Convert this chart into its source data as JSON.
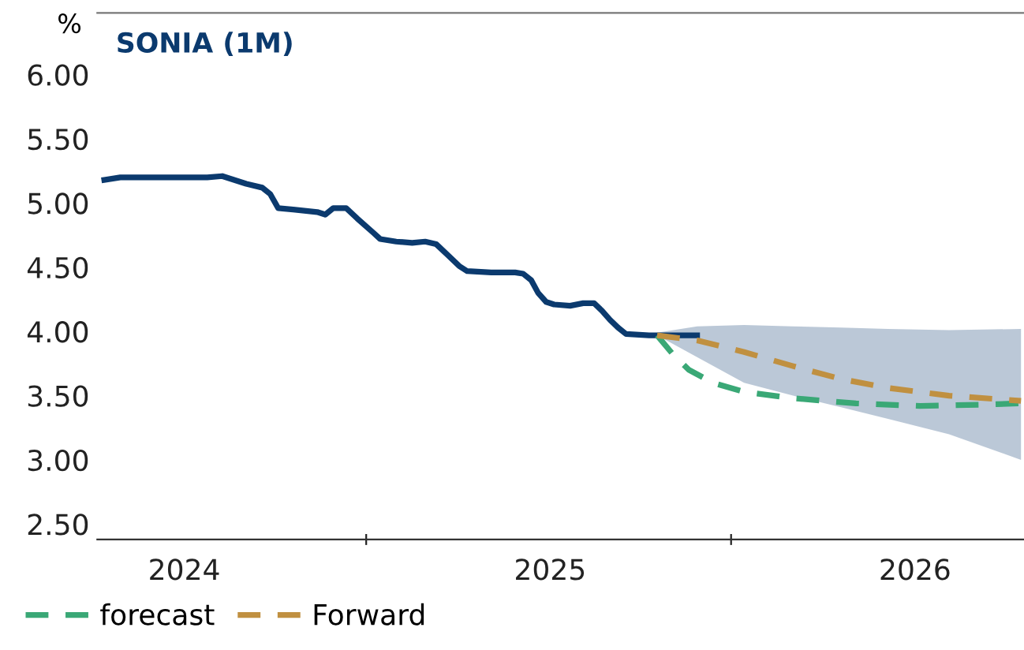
{
  "chart_data": {
    "type": "line",
    "title": "SONIA (1M)",
    "ylabel": "%",
    "xlim": [
      "2023-10-06",
      "2026-04-20"
    ],
    "ylim": [
      2.38,
      6.48
    ],
    "xticks": [
      {
        "value": "2024-01-01",
        "label": "2024"
      },
      {
        "value": "2024-07-01",
        "label": null
      },
      {
        "value": "2025-01-01",
        "label": "2025"
      },
      {
        "value": "2025-07-01",
        "label": null
      },
      {
        "value": "2026-01-01",
        "label": "2026"
      }
    ],
    "yticks": [
      {
        "value": 2.5,
        "label": "2.50"
      },
      {
        "value": 3.0,
        "label": "3.00"
      },
      {
        "value": 3.5,
        "label": "3.50"
      },
      {
        "value": 4.0,
        "label": "4.00"
      },
      {
        "value": 4.5,
        "label": "4.50"
      },
      {
        "value": 5.0,
        "label": "5.00"
      },
      {
        "value": 5.5,
        "label": "5.50"
      },
      {
        "value": 6.0,
        "label": "6.00"
      }
    ],
    "grid": false,
    "legend": "bottom left",
    "marker": "none",
    "series": [
      {
        "color": "#0b3a6e",
        "line_style": "solid",
        "x": [
          "2023-10-13",
          "2023-10-29",
          "2023-12-23",
          "2024-01-24",
          "2024-02-08",
          "2024-02-16",
          "2024-03-03",
          "2024-03-19",
          "2024-03-27",
          "2024-04-04",
          "2024-04-19",
          "2024-05-13",
          "2024-05-21",
          "2024-05-29",
          "2024-06-11",
          "2024-06-22",
          "2024-07-08",
          "2024-07-15",
          "2024-07-31",
          "2024-08-16",
          "2024-08-29",
          "2024-09-09",
          "2024-09-20",
          "2024-10-02",
          "2024-10-10",
          "2024-11-03",
          "2024-11-27",
          "2024-12-05",
          "2024-12-13",
          "2024-12-20",
          "2024-12-28",
          "2025-01-05",
          "2025-01-21",
          "2025-02-03",
          "2025-02-14",
          "2025-02-22",
          "2025-03-02",
          "2025-03-10",
          "2025-03-18",
          "2025-04-10",
          "2025-05-12",
          "2025-05-28"
        ],
        "values": [
          5.18,
          5.2,
          5.2,
          5.2,
          5.21,
          5.19,
          5.15,
          5.12,
          5.07,
          4.96,
          4.95,
          4.93,
          4.91,
          4.96,
          4.96,
          4.88,
          4.77,
          4.72,
          4.7,
          4.69,
          4.7,
          4.68,
          4.6,
          4.51,
          4.47,
          4.46,
          4.46,
          4.45,
          4.4,
          4.3,
          4.23,
          4.21,
          4.2,
          4.22,
          4.22,
          4.16,
          4.09,
          4.03,
          3.98,
          3.97,
          3.97,
          3.97
        ]
      },
      {
        "name": "forecast",
        "color": "#3aa876",
        "line_style": "dashed",
        "x": [
          "2025-04-18",
          "2025-05-04",
          "2025-05-20",
          "2025-06-13",
          "2025-07-14",
          "2025-09-01",
          "2025-11-03",
          "2026-01-06",
          "2026-03-08",
          "2026-04-17"
        ],
        "values": [
          3.97,
          3.82,
          3.7,
          3.6,
          3.53,
          3.48,
          3.44,
          3.42,
          3.43,
          3.44
        ]
      },
      {
        "name": "Forward",
        "color": "#c09040",
        "line_style": "dashed",
        "x": [
          "2025-04-18",
          "2025-05-28",
          "2025-07-14",
          "2025-09-01",
          "2025-10-19",
          "2025-12-05",
          "2026-02-04",
          "2026-04-17"
        ],
        "values": [
          3.97,
          3.93,
          3.84,
          3.73,
          3.63,
          3.56,
          3.5,
          3.46
        ],
        "lower": [
          3.97,
          3.8,
          3.6,
          3.5,
          3.41,
          3.32,
          3.2,
          3.0
        ],
        "upper": [
          3.99,
          4.04,
          4.05,
          4.04,
          4.03,
          4.02,
          4.01,
          4.02
        ]
      }
    ]
  }
}
